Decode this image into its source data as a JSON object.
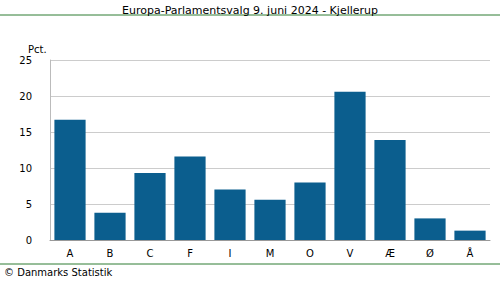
{
  "chart_data": {
    "type": "bar",
    "title": "Europa-Parlamentsvalg 9. juni 2024 - Kjellerup",
    "ylabel": "Pct.",
    "source": "© Danmarks Statistik",
    "categories": [
      "A",
      "B",
      "C",
      "F",
      "I",
      "M",
      "O",
      "V",
      "Æ",
      "Ø",
      "Å"
    ],
    "values": [
      16.7,
      3.8,
      9.3,
      11.6,
      7.0,
      5.6,
      8.0,
      20.6,
      13.9,
      3.0,
      1.3
    ],
    "color": "#0b5e8e",
    "ylim": [
      0,
      25
    ],
    "yticks": [
      0,
      5,
      10,
      15,
      20,
      25
    ],
    "grid": true
  }
}
